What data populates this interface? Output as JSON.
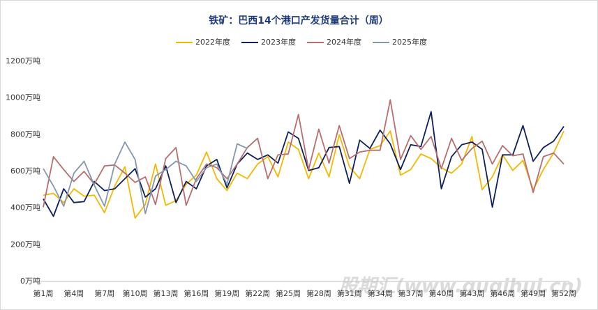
{
  "chart_data": {
    "type": "line",
    "title": "铁矿：巴西14个港口产发货量合计（周）",
    "watermark": "股期汇(www.guqihui.cn)",
    "categories": [
      "第1周",
      null,
      null,
      "第4周",
      null,
      null,
      "第7周",
      null,
      null,
      "第10周",
      null,
      null,
      "第13周",
      null,
      null,
      "第16周",
      null,
      null,
      "第19周",
      null,
      null,
      "第22周",
      null,
      null,
      "第25周",
      null,
      null,
      "第28周",
      null,
      null,
      "第31周",
      null,
      null,
      "第34周",
      null,
      null,
      "第37周",
      null,
      null,
      "第40周",
      null,
      null,
      "第43周",
      null,
      null,
      "第46周",
      null,
      null,
      "第49周",
      null,
      null,
      "第52周"
    ],
    "ylim": [
      0,
      1200
    ],
    "yticks": [
      {
        "value": 0,
        "label": "0万吨"
      },
      {
        "value": 200,
        "label": "200万吨"
      },
      {
        "value": 400,
        "label": "400万吨"
      },
      {
        "value": 600,
        "label": "600万吨"
      },
      {
        "value": 800,
        "label": "800万吨"
      },
      {
        "value": 1000,
        "label": "1000万吨"
      },
      {
        "value": 1200,
        "label": "1200万吨"
      }
    ],
    "legend": "top",
    "series": [
      {
        "name": "2022年度",
        "color": "#f5b800",
        "values": [
          470,
          480,
          430,
          505,
          465,
          470,
          375,
          520,
          625,
          345,
          420,
          640,
          415,
          440,
          530,
          580,
          705,
          560,
          495,
          590,
          560,
          640,
          680,
          570,
          760,
          720,
          560,
          700,
          570,
          800,
          625,
          560,
          720,
          740,
          820,
          580,
          610,
          695,
          670,
          620,
          590,
          640,
          790,
          500,
          570,
          690,
          605,
          660,
          500,
          610,
          700,
          820
        ]
      },
      {
        "name": "2023年度",
        "color": "#0d1f5c",
        "values": [
          450,
          355,
          505,
          430,
          435,
          545,
          495,
          505,
          560,
          615,
          460,
          505,
          630,
          430,
          545,
          505,
          630,
          665,
          510,
          640,
          700,
          665,
          690,
          645,
          815,
          780,
          605,
          620,
          730,
          735,
          535,
          770,
          725,
          825,
          750,
          610,
          745,
          735,
          925,
          505,
          680,
          745,
          760,
          720,
          405,
          690,
          690,
          850,
          655,
          730,
          765,
          845
        ]
      },
      {
        "name": "2024年度",
        "color": "#b86e6e",
        "values": [
          405,
          680,
          610,
          545,
          600,
          530,
          630,
          635,
          590,
          540,
          570,
          420,
          670,
          730,
          415,
          560,
          640,
          620,
          560,
          640,
          730,
          780,
          560,
          690,
          695,
          910,
          610,
          830,
          645,
          850,
          670,
          705,
          715,
          715,
          990,
          665,
          795,
          720,
          790,
          615,
          780,
          660,
          725,
          765,
          640,
          740,
          685,
          695,
          485,
          680,
          700,
          640
        ]
      },
      {
        "name": "2025年度",
        "color": "#8497b0",
        "values": [
          615,
          520,
          410,
          590,
          655,
          525,
          410,
          640,
          760,
          665,
          370,
          575,
          610,
          655,
          630,
          545,
          620,
          640,
          530,
          750,
          725,
          null,
          null,
          null,
          null,
          null,
          null,
          null,
          null,
          null,
          null,
          null,
          null,
          null,
          null,
          null,
          null,
          null,
          null,
          null,
          null,
          null,
          null,
          null,
          null,
          null,
          null,
          null,
          null,
          null,
          null,
          null
        ]
      }
    ]
  }
}
